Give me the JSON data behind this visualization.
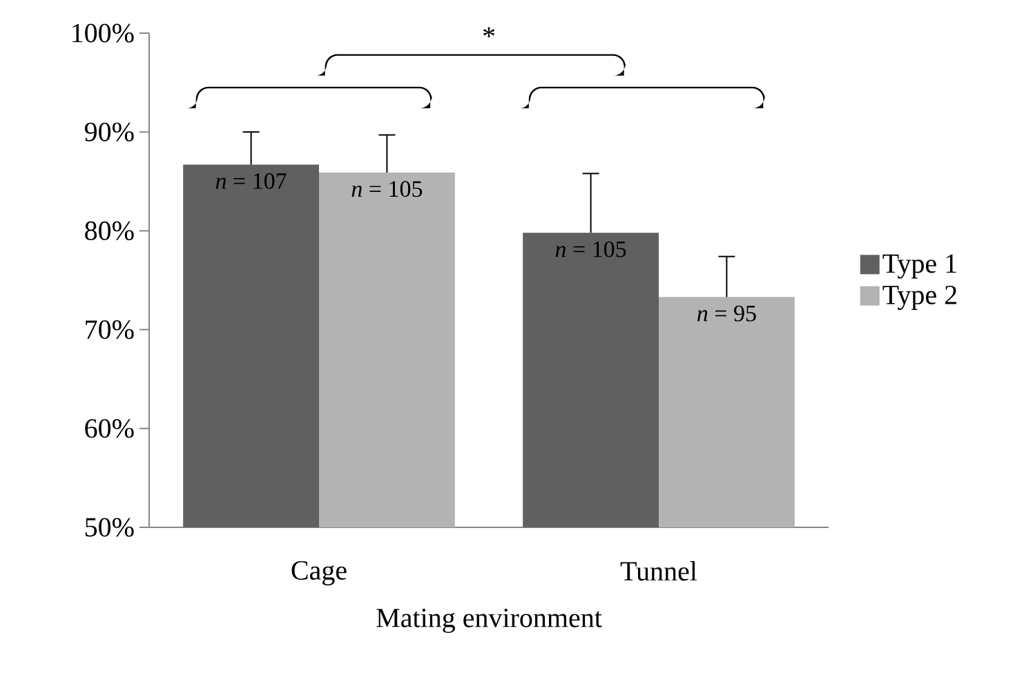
{
  "chart_data": {
    "type": "bar",
    "xlabel": "Mating environment",
    "categories": [
      "Cage",
      "Tunnel"
    ],
    "series": [
      {
        "name": "Type 1",
        "color": "#606060",
        "values": [
          86.7,
          79.8
        ],
        "errors": [
          [
            86.7,
            90.0
          ],
          [
            79.8,
            85.8
          ]
        ]
      },
      {
        "name": "Type 2",
        "color": "#b3b3b3",
        "values": [
          85.9,
          73.3
        ],
        "errors": [
          [
            85.9,
            89.7
          ],
          [
            73.3,
            77.4
          ]
        ]
      }
    ],
    "ylim": [
      50,
      100
    ],
    "yticks": [
      {
        "value": 50,
        "label": "50%"
      },
      {
        "value": 60,
        "label": "60%"
      },
      {
        "value": 70,
        "label": "70%"
      },
      {
        "value": 80,
        "label": "80%"
      },
      {
        "value": 90,
        "label": "90%"
      },
      {
        "value": 100,
        "label": "100%"
      }
    ],
    "legend": "right",
    "annotations": [
      {
        "text": "*n* = 107",
        "x": "Cage",
        "y": 86.7
      },
      {
        "text": "*n* = 105",
        "x": "Cage",
        "y": 85.9
      },
      {
        "text": "*n* = 105",
        "x": "Tunnel",
        "y": 79.8
      },
      {
        "text": "*n* = 95",
        "x": "Tunnel",
        "y": 73.3
      },
      "*"
    ]
  }
}
